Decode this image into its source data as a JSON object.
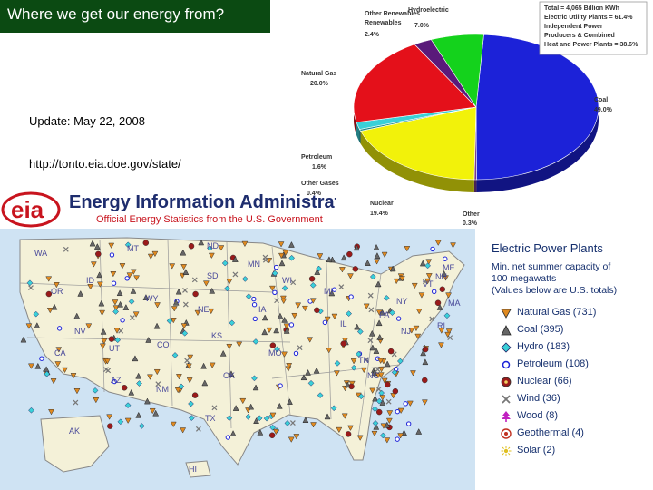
{
  "title": "Where we get our energy from?",
  "update_text": "Update: May 22, 2008",
  "source_url": "http://tonto.eia.doe.gov/state/",
  "pie": {
    "summary_lines": [
      "Total = 4,065 Billion KWh",
      "Electric Utility Plants = 61.4%",
      "Independent Power",
      "Producers & Combined",
      "Heat and Power Plants = 38.6%"
    ],
    "slices": [
      {
        "name": "Coal",
        "percent": "49.0%",
        "value": 49.0,
        "color": "#1c22d8"
      },
      {
        "name": "Other",
        "percent": "0.3%",
        "value": 0.3,
        "color": "#7a3a8a"
      },
      {
        "name": "Nuclear",
        "percent": "19.4%",
        "value": 19.4,
        "color": "#f2f20a"
      },
      {
        "name": "Other Gases",
        "percent": "0.4%",
        "value": 0.4,
        "color": "#1a8a8a"
      },
      {
        "name": "Petroleum",
        "percent": "1.6%",
        "value": 1.6,
        "color": "#3ad0d8"
      },
      {
        "name": "Natural Gas",
        "percent": "20.0%",
        "value": 20.0,
        "color": "#e4101a"
      },
      {
        "name": "Other Renewables",
        "percent": "2.4%",
        "value": 2.4,
        "color": "#5a1a7a"
      },
      {
        "name": "Hydroelectric",
        "percent": "7.0%",
        "value": 7.0,
        "color": "#14d21c"
      }
    ]
  },
  "eia": {
    "logo_text": "eia",
    "name": "Energy Information Administration",
    "tagline": "Official Energy Statistics from the U.S. Government"
  },
  "map": {
    "states": [
      "WA",
      "MT",
      "ND",
      "MN",
      "OR",
      "ID",
      "SD",
      "WI",
      "MI",
      "VT",
      "NH",
      "ME",
      "WY",
      "NE",
      "IA",
      "NY",
      "MA",
      "RI",
      "NV",
      "CA",
      "UT",
      "CO",
      "KS",
      "MO",
      "IL",
      "PA",
      "NJ",
      "AZ",
      "NM",
      "OK",
      "TN",
      "NC",
      "TX",
      "AK",
      "HI"
    ]
  },
  "legend": {
    "title": "Electric Power Plants",
    "subtitle_lines": [
      "Min. net summer capacity of",
      "100 megawatts",
      "(Values below are U.S. totals)"
    ],
    "items": [
      {
        "label": "Natural Gas (731)",
        "icon": "natural-gas-icon",
        "color": "#e08a20"
      },
      {
        "label": "Coal (395)",
        "icon": "coal-icon",
        "color": "#555555"
      },
      {
        "label": "Hydro (183)",
        "icon": "hydro-icon",
        "color": "#3ad0d8"
      },
      {
        "label": "Petroleum (108)",
        "icon": "petroleum-icon",
        "color": "#1c22d8"
      },
      {
        "label": "Nuclear (66)",
        "icon": "nuclear-icon",
        "color": "#9a1a1a"
      },
      {
        "label": "Wind (36)",
        "icon": "wind-icon",
        "color": "#777777"
      },
      {
        "label": "Wood (8)",
        "icon": "wood-icon",
        "color": "#c020c0"
      },
      {
        "label": "Geothermal (4)",
        "icon": "geothermal-icon",
        "color": "#c03020"
      },
      {
        "label": "Solar (2)",
        "icon": "solar-icon",
        "color": "#e0c020"
      }
    ]
  }
}
